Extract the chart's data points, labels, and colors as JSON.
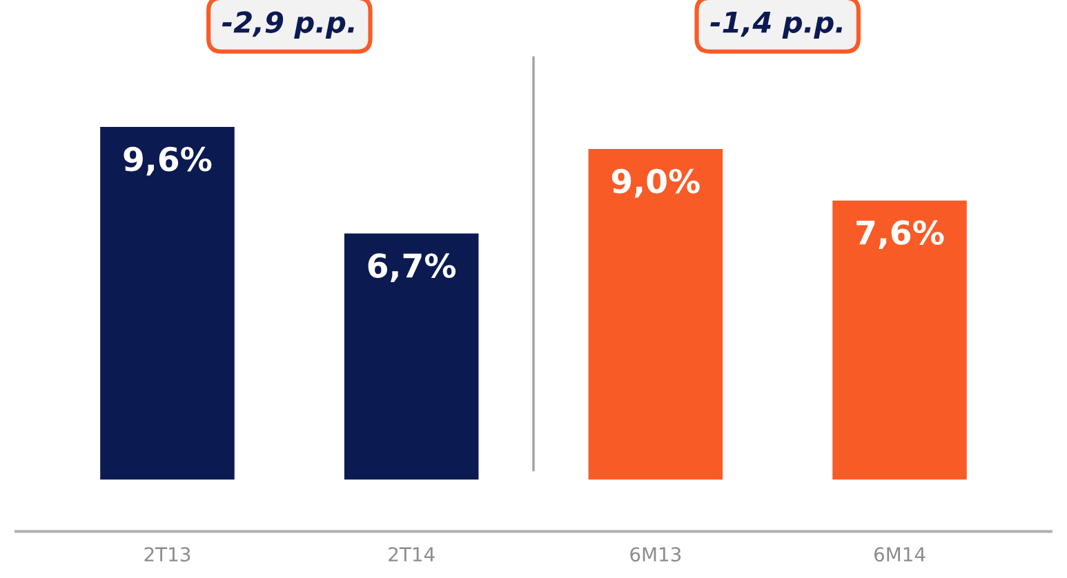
{
  "chart_data": {
    "type": "bar",
    "categories": [
      "2T13",
      "2T14",
      "6M13",
      "6M14"
    ],
    "values": [
      9.6,
      6.7,
      9.0,
      7.6
    ],
    "colors": [
      "#0c1a52",
      "#0c1a52",
      "#f95b26",
      "#f95b26"
    ],
    "value_labels": [
      "9,6%",
      "6,7%",
      "9,0%",
      "7,6%"
    ],
    "annotations": [
      "-2,9 p.p.",
      "-1,4 p.p."
    ],
    "grid": false,
    "legend": false
  }
}
